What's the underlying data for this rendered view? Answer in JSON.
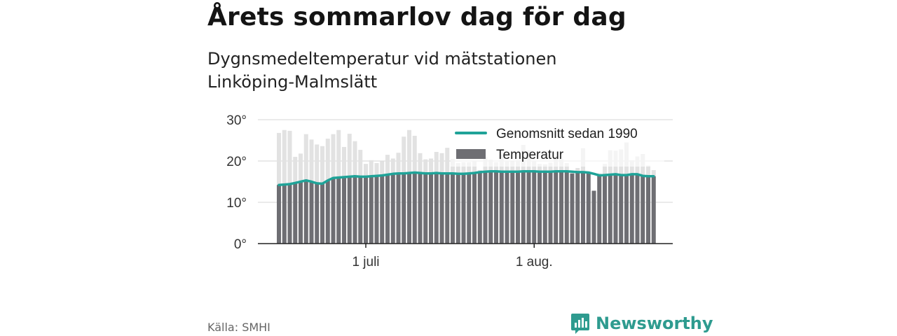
{
  "title": "Årets sommarlov dag för dag",
  "subtitle": "Dygnsmedeltemperatur vid mätstationen Linköping-Malmslätt",
  "source": "Källa: SMHI",
  "brand": {
    "name": "Newsworthy",
    "icon": "newsworthy-logo-icon",
    "color": "#2e9b8f"
  },
  "chart_data": {
    "type": "bar",
    "x_tick_labels": [
      "1 juli",
      "1 aug."
    ],
    "y_tick_labels": [
      "0°",
      "10°",
      "20°",
      "30°"
    ],
    "ylim": [
      0,
      30
    ],
    "grid": true,
    "legend_position": "top-right",
    "series": [
      {
        "name": "Temperatur",
        "kind": "bar",
        "color": "#6e6e73",
        "ghost_color": "#e2e2e2",
        "values": [
          26.8,
          27.5,
          27.3,
          21.0,
          21.8,
          26.5,
          25.2,
          24.0,
          23.6,
          25.4,
          26.5,
          27.5,
          23.4,
          26.6,
          24.8,
          22.7,
          19.3,
          20.2,
          19.5,
          19.9,
          21.5,
          20.6,
          22.0,
          25.9,
          27.5,
          26.1,
          21.9,
          20.4,
          20.6,
          22.2,
          21.9,
          23.2,
          20.5,
          19.5,
          19.7,
          19.7,
          20.0,
          17.8,
          21.0,
          20.3,
          19.7,
          21.5,
          20.0,
          19.9,
          20.2,
          23.9,
          22.6,
          20.0,
          19.3,
          19.2,
          19.6,
          21.0,
          20.4,
          19.5,
          17.0,
          18.3,
          23.1,
          17.0,
          12.8,
          17.0,
          19.3,
          22.6,
          22.5,
          22.8,
          24.5,
          20.2,
          21.1,
          21.7,
          18.9,
          17.8
        ]
      },
      {
        "name": "Genomsnitt sedan 1990",
        "kind": "line",
        "color": "#1fa398",
        "values": [
          14.2,
          14.3,
          14.4,
          14.7,
          15.0,
          15.3,
          15.0,
          14.6,
          14.5,
          15.3,
          15.9,
          16.0,
          16.1,
          16.2,
          16.3,
          16.2,
          16.2,
          16.3,
          16.4,
          16.5,
          16.7,
          16.9,
          17.0,
          17.0,
          17.1,
          17.2,
          17.1,
          17.0,
          17.0,
          17.1,
          17.0,
          17.0,
          17.0,
          16.9,
          16.9,
          17.0,
          17.1,
          17.3,
          17.4,
          17.5,
          17.5,
          17.4,
          17.4,
          17.4,
          17.4,
          17.5,
          17.5,
          17.5,
          17.4,
          17.4,
          17.4,
          17.5,
          17.5,
          17.5,
          17.4,
          17.3,
          17.3,
          17.2,
          16.9,
          16.5,
          16.6,
          16.7,
          16.8,
          16.6,
          16.6,
          16.8,
          16.8,
          16.4,
          16.3,
          16.3
        ]
      }
    ]
  }
}
